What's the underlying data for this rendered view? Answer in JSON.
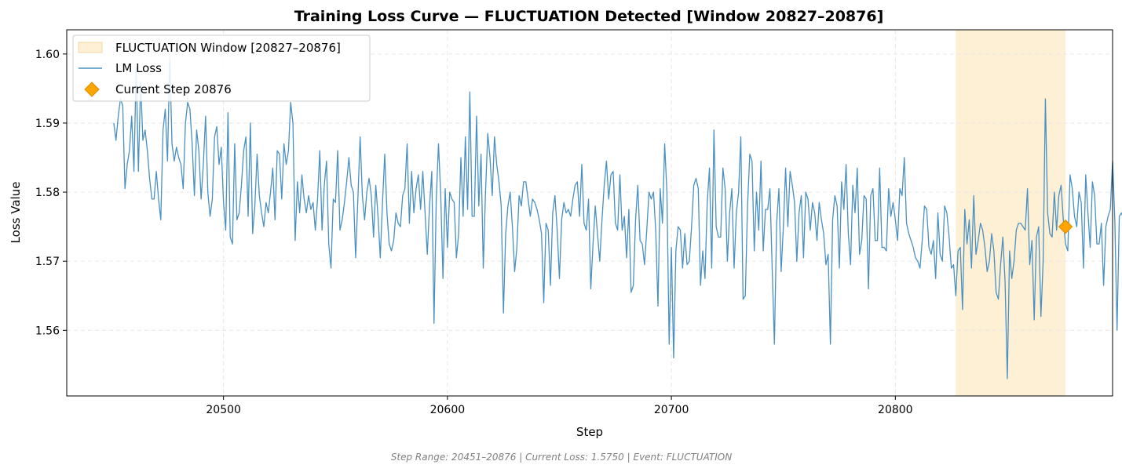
{
  "chart_data": {
    "type": "line",
    "title": "Training Loss Curve — FLUCTUATION Detected [Window 20827–20876]",
    "xlabel": "Step",
    "ylabel": "Loss Value",
    "xlim": [
      20430,
      20897
    ],
    "ylim": [
      1.5505,
      1.6035
    ],
    "xticks": [
      20500,
      20600,
      20700,
      20800
    ],
    "yticks": [
      1.56,
      1.57,
      1.58,
      1.59,
      1.6
    ],
    "xtick_labels": [
      "20500",
      "20600",
      "20700",
      "20800"
    ],
    "ytick_labels": [
      "1.56",
      "1.57",
      "1.58",
      "1.59",
      "1.60"
    ],
    "grid": true,
    "legend_position": "top-left",
    "legend": {
      "window_label": "FLUCTUATION Window [20827–20876]",
      "series_label": "LM Loss",
      "marker_label": "Current Step 20876"
    },
    "window": {
      "start": 20827,
      "end": 20876,
      "color": "#fdf0d5"
    },
    "series": [
      {
        "name": "LM Loss",
        "color": "#4a90c2",
        "x_start": 20451,
        "x_step": 1,
        "values": [
          1.59,
          1.5875,
          1.591,
          1.5935,
          1.5925,
          1.5805,
          1.584,
          1.586,
          1.591,
          1.583,
          1.598,
          1.583,
          1.596,
          1.5875,
          1.589,
          1.586,
          1.582,
          1.579,
          1.579,
          1.583,
          1.579,
          1.576,
          1.589,
          1.592,
          1.5845,
          1.5995,
          1.587,
          1.5845,
          1.5865,
          1.585,
          1.584,
          1.5805,
          1.59,
          1.593,
          1.592,
          1.587,
          1.5795,
          1.589,
          1.586,
          1.579,
          1.584,
          1.591,
          1.58,
          1.5765,
          1.579,
          1.588,
          1.5895,
          1.584,
          1.5865,
          1.5785,
          1.5745,
          1.5915,
          1.5735,
          1.5725,
          1.587,
          1.576,
          1.577,
          1.581,
          1.586,
          1.588,
          1.5765,
          1.59,
          1.574,
          1.578,
          1.5855,
          1.5795,
          1.577,
          1.575,
          1.5785,
          1.577,
          1.58,
          1.5835,
          1.576,
          1.586,
          1.5855,
          1.579,
          1.587,
          1.584,
          1.586,
          1.593,
          1.59,
          1.573,
          1.5815,
          1.577,
          1.5825,
          1.579,
          1.577,
          1.5795,
          1.5775,
          1.5785,
          1.5745,
          1.579,
          1.586,
          1.5745,
          1.581,
          1.5845,
          1.5725,
          1.569,
          1.579,
          1.5785,
          1.586,
          1.5745,
          1.576,
          1.5785,
          1.5815,
          1.585,
          1.581,
          1.58,
          1.5705,
          1.579,
          1.588,
          1.5795,
          1.576,
          1.58,
          1.582,
          1.5795,
          1.5735,
          1.581,
          1.5765,
          1.5705,
          1.5785,
          1.5855,
          1.577,
          1.5725,
          1.5715,
          1.573,
          1.577,
          1.5755,
          1.575,
          1.5795,
          1.5805,
          1.587,
          1.5755,
          1.583,
          1.577,
          1.5805,
          1.5825,
          1.5775,
          1.583,
          1.577,
          1.571,
          1.578,
          1.583,
          1.561,
          1.579,
          1.587,
          1.5795,
          1.5675,
          1.5805,
          1.572,
          1.58,
          1.579,
          1.5785,
          1.5705,
          1.574,
          1.585,
          1.5765,
          1.588,
          1.5775,
          1.5945,
          1.5765,
          1.5765,
          1.591,
          1.578,
          1.5855,
          1.569,
          1.58,
          1.5885,
          1.585,
          1.5795,
          1.588,
          1.584,
          1.5815,
          1.578,
          1.5625,
          1.574,
          1.578,
          1.58,
          1.575,
          1.5685,
          1.572,
          1.5795,
          1.578,
          1.5815,
          1.5815,
          1.579,
          1.5765,
          1.579,
          1.5785,
          1.5775,
          1.576,
          1.574,
          1.564,
          1.5755,
          1.5745,
          1.5665,
          1.577,
          1.5795,
          1.5745,
          1.5675,
          1.576,
          1.5785,
          1.577,
          1.5775,
          1.5765,
          1.579,
          1.581,
          1.5815,
          1.5765,
          1.584,
          1.5755,
          1.5745,
          1.579,
          1.566,
          1.5725,
          1.578,
          1.574,
          1.57,
          1.576,
          1.581,
          1.5845,
          1.579,
          1.5825,
          1.583,
          1.5755,
          1.5745,
          1.5825,
          1.5745,
          1.5765,
          1.5705,
          1.5775,
          1.5655,
          1.5665,
          1.576,
          1.581,
          1.573,
          1.5725,
          1.5695,
          1.5745,
          1.58,
          1.579,
          1.58,
          1.5745,
          1.5635,
          1.5805,
          1.5755,
          1.587,
          1.58,
          1.558,
          1.572,
          1.556,
          1.5715,
          1.575,
          1.5745,
          1.569,
          1.574,
          1.5695,
          1.57,
          1.575,
          1.581,
          1.582,
          1.5805,
          1.5665,
          1.5715,
          1.5675,
          1.5785,
          1.5835,
          1.569,
          1.589,
          1.575,
          1.5735,
          1.5735,
          1.5835,
          1.5805,
          1.57,
          1.577,
          1.5805,
          1.569,
          1.577,
          1.58,
          1.588,
          1.5645,
          1.565,
          1.578,
          1.5855,
          1.5845,
          1.5715,
          1.58,
          1.5745,
          1.5845,
          1.5715,
          1.5775,
          1.5775,
          1.5805,
          1.569,
          1.558,
          1.5755,
          1.5805,
          1.5685,
          1.575,
          1.5835,
          1.575,
          1.583,
          1.581,
          1.5785,
          1.57,
          1.577,
          1.5795,
          1.5705,
          1.58,
          1.579,
          1.5745,
          1.5785,
          1.577,
          1.573,
          1.5785,
          1.576,
          1.574,
          1.5695,
          1.571,
          1.558,
          1.576,
          1.5795,
          1.578,
          1.569,
          1.5815,
          1.5775,
          1.584,
          1.574,
          1.5695,
          1.581,
          1.577,
          1.5835,
          1.571,
          1.573,
          1.5795,
          1.579,
          1.566,
          1.5795,
          1.5805,
          1.573,
          1.573,
          1.5835,
          1.572,
          1.572,
          1.5715,
          1.5805,
          1.5765,
          1.5785,
          1.576,
          1.573,
          1.5805,
          1.5795,
          1.585,
          1.5755,
          1.574,
          1.573,
          1.572,
          1.5705,
          1.57,
          1.569,
          1.573,
          1.578,
          1.5775,
          1.572,
          1.571,
          1.573,
          1.5675,
          1.577,
          1.571,
          1.57,
          1.578,
          1.577,
          1.5735,
          1.569,
          1.5695,
          1.565,
          1.5715,
          1.572,
          1.563,
          1.5775,
          1.5725,
          1.576,
          1.569,
          1.5795,
          1.571,
          1.573,
          1.5755,
          1.5745,
          1.572,
          1.5685,
          1.57,
          1.574,
          1.5715,
          1.5655,
          1.5645,
          1.5695,
          1.5735,
          1.567,
          1.553,
          1.5715,
          1.5675,
          1.57,
          1.5745,
          1.5755,
          1.5755,
          1.575,
          1.5745,
          1.5805,
          1.5695,
          1.573,
          1.5615,
          1.5735,
          1.575,
          1.562,
          1.57,
          1.5935,
          1.577,
          1.574,
          1.5735,
          1.58,
          1.5745,
          1.5795,
          1.581,
          1.576,
          1.5725,
          1.5715,
          1.5825,
          1.5805,
          1.5765,
          1.575,
          1.58,
          1.5785,
          1.569,
          1.5825,
          1.577,
          1.572,
          1.5815,
          1.5795,
          1.5725,
          1.5725,
          1.5755,
          1.5665,
          1.575,
          1.5765,
          1.5775,
          1.5845,
          1.576,
          1.56,
          1.5765,
          1.577,
          1.576,
          1.5725,
          1.575
        ]
      }
    ],
    "current_step": {
      "x": 20876,
      "y": 1.575,
      "color": "#ffa500",
      "edge_color": "#e08a00"
    }
  },
  "footer": {
    "text": "Step Range: 20451–20876 | Current Loss: 1.5750 | Event: FLUCTUATION"
  }
}
